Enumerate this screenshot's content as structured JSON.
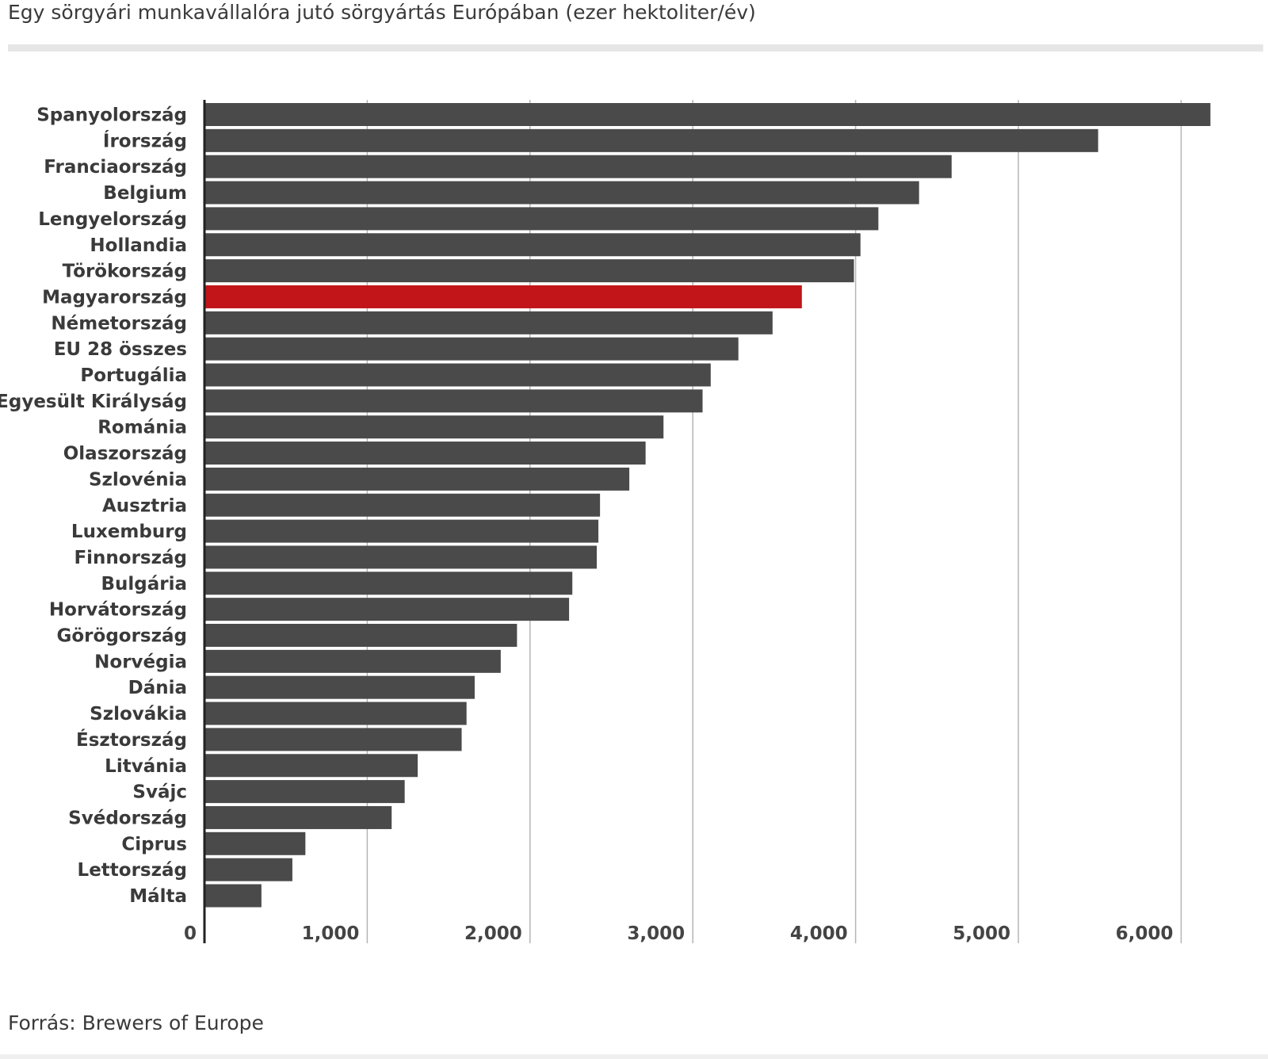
{
  "title": "Egy sörgyári munkavállalóra jutó sörgyártás Európában (ezer hektoliter/év)",
  "source": "Forrás: Brewers of Europe",
  "chart_data": {
    "type": "bar",
    "orientation": "horizontal",
    "title": "Egy sörgyári munkavállalóra jutó sörgyártás Európában (ezer hektoliter/év)",
    "xlabel": "",
    "ylabel": "",
    "xlim": [
      0,
      6300
    ],
    "ticks": [
      0,
      1000,
      2000,
      3000,
      4000,
      5000,
      6000
    ],
    "tick_labels": [
      "0",
      "1,000",
      "2,000",
      "3,000",
      "4,000",
      "5,000",
      "6,000"
    ],
    "grid": true,
    "categories": [
      "Spanyolország",
      "Írország",
      "Franciaország",
      "Belgium",
      "Lengyelország",
      "Hollandia",
      "Törökország",
      "Magyarország",
      "Németország",
      "EU 28 összes",
      "Portugália",
      "Egyesült Királyság",
      "Románia",
      "Olaszország",
      "Szlovénia",
      "Ausztria",
      "Luxemburg",
      "Finnország",
      "Bulgária",
      "Horvátország",
      "Görögország",
      "Norvégia",
      "Dánia",
      "Szlovákia",
      "Észtország",
      "Litvánia",
      "Svájc",
      "Svédország",
      "Ciprus",
      "Lettország",
      "Málta"
    ],
    "values": [
      6180,
      5490,
      4590,
      4390,
      4140,
      4030,
      3990,
      3670,
      3490,
      3280,
      3110,
      3060,
      2820,
      2710,
      2610,
      2430,
      2420,
      2410,
      2260,
      2240,
      1920,
      1820,
      1660,
      1610,
      1580,
      1310,
      1230,
      1150,
      620,
      540,
      350
    ],
    "highlight": "Magyarország",
    "colors": {
      "bar": "#4a4a4a",
      "highlight": "#c1151a",
      "grid": "#b5b5b5",
      "axis": "#222222"
    }
  }
}
